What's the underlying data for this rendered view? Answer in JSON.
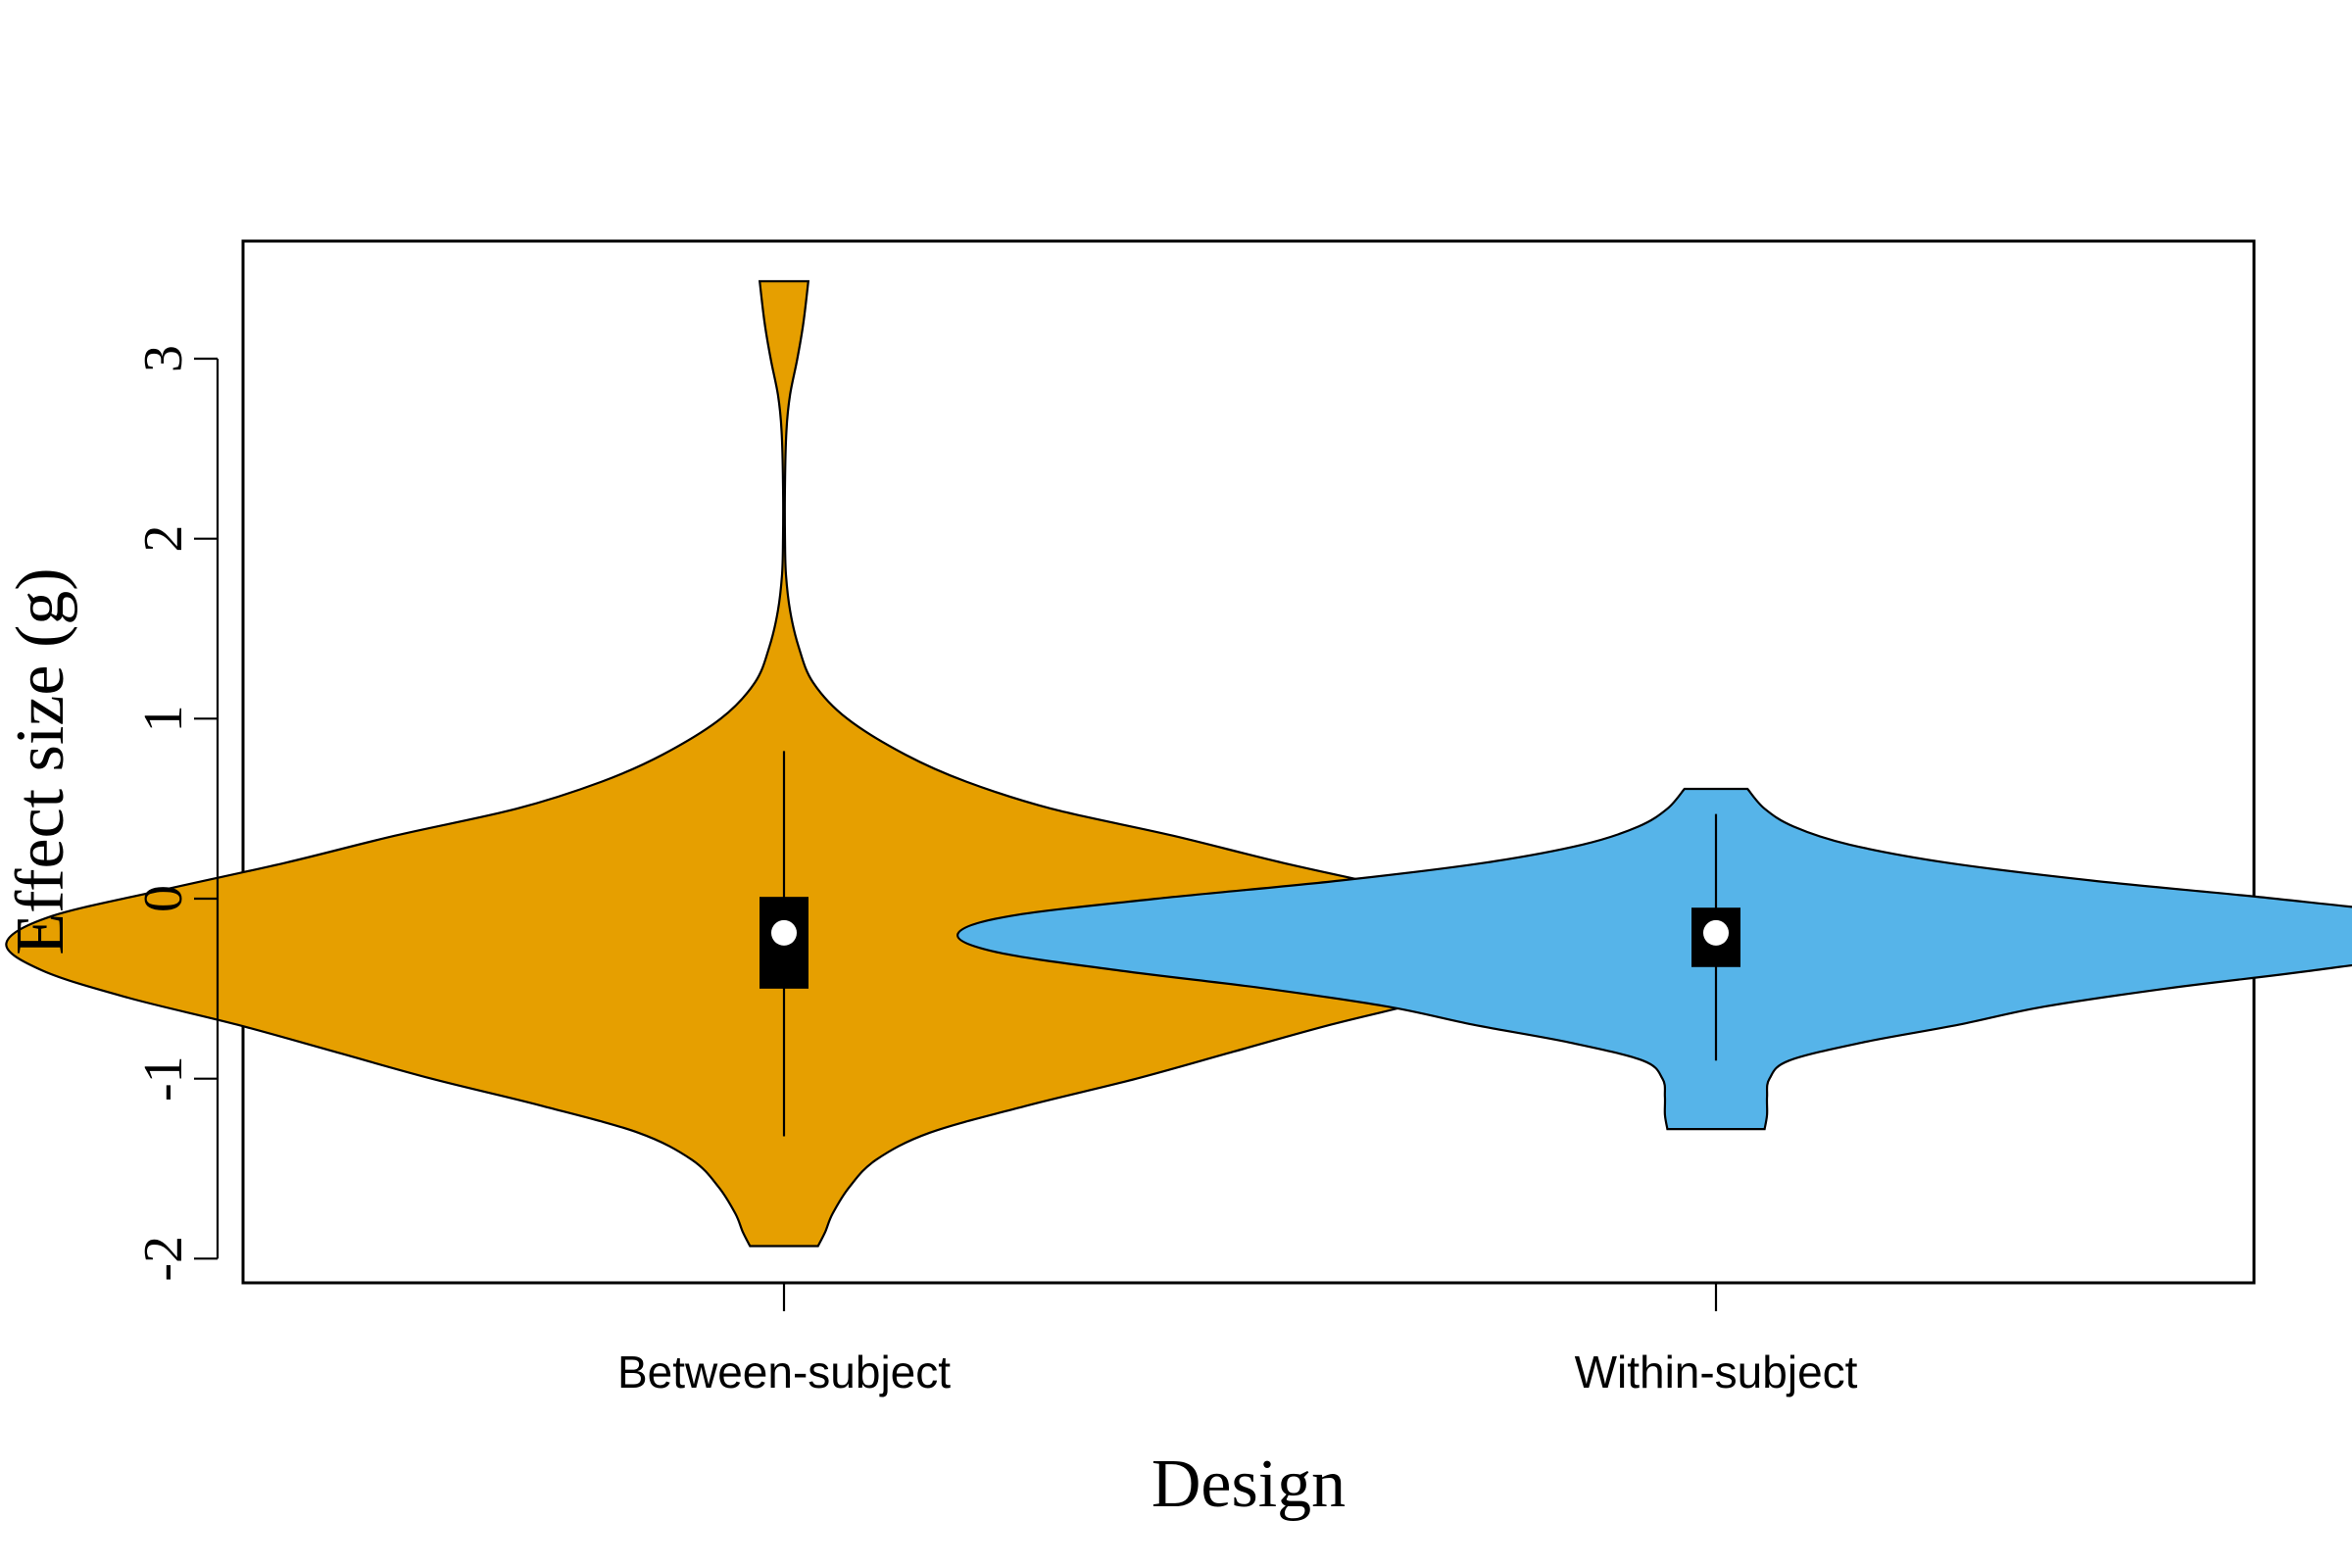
{
  "chart_data": {
    "type": "violin",
    "title": "",
    "xlabel": "Design",
    "ylabel": "Effect size (g)",
    "ylim": [
      -2.13,
      3.65
    ],
    "yticks": [
      -2,
      -1,
      0,
      1,
      2,
      3
    ],
    "ytick_labels": [
      "-2",
      "-1",
      "0",
      "1",
      "2",
      "3"
    ],
    "grid": false,
    "legend": "none",
    "categories": [
      "Between-subject",
      "Within-subject"
    ],
    "series": [
      {
        "category": "Between-subject",
        "color": "#E69F00",
        "min": -1.93,
        "max": 3.43,
        "whisker_low": -1.32,
        "whisker_high": 0.82,
        "q1": -0.5,
        "q3": 0.01,
        "median": -0.19,
        "density": [
          [
            -1.93,
            0.14
          ],
          [
            -1.85,
            0.17
          ],
          [
            -1.75,
            0.2
          ],
          [
            -1.6,
            0.27
          ],
          [
            -1.45,
            0.38
          ],
          [
            -1.3,
            0.6
          ],
          [
            -1.15,
            1.0
          ],
          [
            -1.0,
            1.45
          ],
          [
            -0.85,
            1.85
          ],
          [
            -0.7,
            2.25
          ],
          [
            -0.55,
            2.7
          ],
          [
            -0.4,
            3.05
          ],
          [
            -0.25,
            3.2
          ],
          [
            -0.1,
            3.02
          ],
          [
            0.05,
            2.55
          ],
          [
            0.2,
            2.05
          ],
          [
            0.35,
            1.6
          ],
          [
            0.5,
            1.1
          ],
          [
            0.65,
            0.75
          ],
          [
            0.8,
            0.5
          ],
          [
            1.0,
            0.26
          ],
          [
            1.2,
            0.12
          ],
          [
            1.4,
            0.06
          ],
          [
            1.6,
            0.025
          ],
          [
            1.8,
            0.008
          ],
          [
            2.0,
            0.004
          ],
          [
            2.3,
            0.004
          ],
          [
            2.6,
            0.01
          ],
          [
            2.8,
            0.025
          ],
          [
            3.0,
            0.055
          ],
          [
            3.2,
            0.08
          ],
          [
            3.43,
            0.1
          ]
        ]
      },
      {
        "category": "Within-subject",
        "color": "#56B4E9",
        "min": -1.28,
        "max": 0.61,
        "whisker_low": -0.9,
        "whisker_high": 0.47,
        "q1": -0.38,
        "q3": -0.05,
        "median": -0.19,
        "density": [
          [
            -1.28,
            0.2
          ],
          [
            -1.2,
            0.21
          ],
          [
            -1.1,
            0.21
          ],
          [
            -1.0,
            0.22
          ],
          [
            -0.9,
            0.3
          ],
          [
            -0.8,
            0.6
          ],
          [
            -0.7,
            1.0
          ],
          [
            -0.6,
            1.35
          ],
          [
            -0.5,
            1.85
          ],
          [
            -0.4,
            2.45
          ],
          [
            -0.3,
            2.95
          ],
          [
            -0.2,
            3.12
          ],
          [
            -0.1,
            2.92
          ],
          [
            0.0,
            2.3
          ],
          [
            0.1,
            1.55
          ],
          [
            0.2,
            0.95
          ],
          [
            0.3,
            0.55
          ],
          [
            0.4,
            0.32
          ],
          [
            0.5,
            0.2
          ],
          [
            0.61,
            0.13
          ]
        ]
      }
    ]
  }
}
